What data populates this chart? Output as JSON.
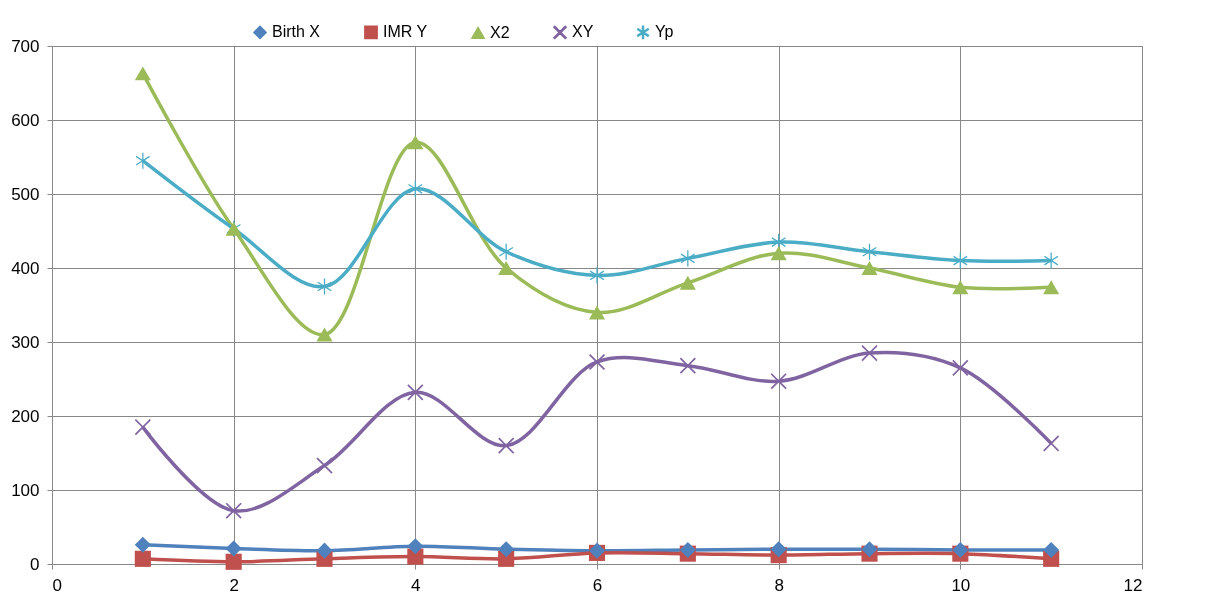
{
  "chart_data": {
    "type": "line",
    "x": [
      1,
      2,
      3,
      4,
      5,
      6,
      7,
      8,
      9,
      10,
      11
    ],
    "series": [
      {
        "name": "Birth X",
        "color": "#4f81bd",
        "marker": "diamond",
        "values": [
          26,
          21,
          18,
          24,
          20,
          18,
          19,
          20,
          20,
          19,
          19
        ]
      },
      {
        "name": "IMR Y",
        "color": "#c0504d",
        "marker": "square",
        "values": [
          7,
          3,
          7,
          10,
          7,
          15,
          14,
          12,
          14,
          14,
          7
        ]
      },
      {
        "name": "X2",
        "color": "#9bbb59",
        "marker": "triangle",
        "values": [
          663,
          453,
          310,
          570,
          400,
          340,
          380,
          420,
          400,
          374,
          374
        ]
      },
      {
        "name": "XY",
        "color": "#8064a2",
        "marker": "cross",
        "values": [
          185,
          72,
          133,
          232,
          160,
          273,
          268,
          247,
          285,
          265,
          163
        ]
      },
      {
        "name": "Yp",
        "color": "#4bacc6",
        "marker": "star",
        "values": [
          545,
          453,
          375,
          507,
          422,
          390,
          413,
          435,
          422,
          410,
          410
        ]
      }
    ],
    "xlim": [
      0,
      12
    ],
    "xticks": [
      0,
      2,
      4,
      6,
      8,
      10,
      12
    ],
    "ylim": [
      0,
      700
    ],
    "yticks": [
      0,
      100,
      200,
      300,
      400,
      500,
      600,
      700
    ],
    "grid": true,
    "legend": "top",
    "line_style": "solid"
  }
}
